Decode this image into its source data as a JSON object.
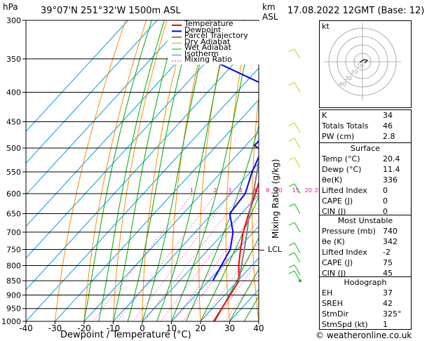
{
  "header": {
    "pressure_unit": "hPa",
    "location": "39°07'N  251°32'W  1500m  ASL",
    "km_label": "km",
    "asl_label": "ASL",
    "datetime": "17.08.2022  12GMT  (Base: 12)"
  },
  "chart_data": {
    "type": "line",
    "xlabel": "Dewpoint / Temperature (°C)",
    "ylabel": "",
    "mixing_ratio_axis_label": "Mixing Ratio (g/kg)",
    "x_ticks": [
      "-40",
      "-30",
      "-20",
      "-10",
      "0",
      "10",
      "20",
      "30",
      "40"
    ],
    "xlim": [
      -40,
      40
    ],
    "pressure_ticks": [
      "300",
      "350",
      "400",
      "450",
      "500",
      "550",
      "600",
      "650",
      "700",
      "750",
      "800",
      "850",
      "900",
      "950",
      "1000"
    ],
    "ylim": [
      1000,
      300
    ],
    "lcl_label": "LCL",
    "lcl_pressure": 752,
    "mixing_ratio_labels": [
      "1",
      "2",
      "3",
      "4",
      "6",
      "8",
      "10",
      "15",
      "20",
      "25"
    ],
    "legend": [
      "Temperature",
      "Dewpoint",
      "Parcel Trajectory",
      "Dry Adiabat",
      "Wet Adiabat",
      "Isotherm",
      "Mixing Ratio"
    ],
    "colors": {
      "temperature": "#ff0000",
      "dewpoint": "#0000ff",
      "parcel": "#808080",
      "dry_adiabat": "#ff8c00",
      "wet_adiabat": "#00aa00",
      "isotherm": "#00a0e0",
      "mixing_ratio": "#ff00aa"
    },
    "series": [
      {
        "name": "Temperature",
        "points": [
          [
            1000,
            24.5
          ],
          [
            850,
            20.4
          ],
          [
            800,
            15.5
          ],
          [
            750,
            11.0
          ],
          [
            700,
            6.5
          ],
          [
            650,
            2.5
          ],
          [
            600,
            -1.5
          ],
          [
            550,
            -6.0
          ],
          [
            510,
            -9.8
          ],
          [
            500,
            -7.8
          ],
          [
            480,
            -9.5
          ],
          [
            450,
            -13.0
          ],
          [
            400,
            -20.0
          ],
          [
            350,
            -27.5
          ],
          [
            300,
            -35.0
          ]
        ]
      },
      {
        "name": "Dewpoint",
        "points": [
          [
            850,
            11.4
          ],
          [
            800,
            9.5
          ],
          [
            750,
            7.5
          ],
          [
            700,
            3.0
          ],
          [
            650,
            -4.0
          ],
          [
            600,
            -5.0
          ],
          [
            550,
            -9.5
          ],
          [
            505,
            -13.0
          ],
          [
            495,
            -17.0
          ],
          [
            450,
            -17.0
          ],
          [
            400,
            -25.0
          ],
          [
            350,
            -60.0
          ],
          [
            300,
            -72.0
          ]
        ]
      },
      {
        "name": "Parcel Trajectory",
        "points": [
          [
            850,
            20.4
          ],
          [
            752,
            12.5
          ],
          [
            700,
            7.8
          ],
          [
            650,
            2.8
          ],
          [
            600,
            -2.2
          ],
          [
            550,
            -7.8
          ],
          [
            500,
            -14.0
          ],
          [
            450,
            -20.5
          ],
          [
            400,
            -28.0
          ],
          [
            350,
            -36.5
          ],
          [
            300,
            -46.0
          ]
        ]
      }
    ]
  },
  "hodograph": {
    "label": "kt",
    "rings": [
      "10",
      "20",
      "30",
      "40"
    ]
  },
  "indices": [
    {
      "k": "K",
      "v": "34"
    },
    {
      "k": "Totals Totals",
      "v": "46"
    },
    {
      "k": "PW (cm)",
      "v": "2.8"
    }
  ],
  "surface": {
    "title": "Surface",
    "rows": [
      {
        "k": "Temp (°C)",
        "v": "20.4"
      },
      {
        "k": "Dewp (°C)",
        "v": "11.4"
      },
      {
        "k": "θe(K)",
        "v": "336"
      },
      {
        "k": "Lifted Index",
        "v": "0"
      },
      {
        "k": "CAPE (J)",
        "v": "0"
      },
      {
        "k": "CIN (J)",
        "v": "0"
      }
    ]
  },
  "most_unstable": {
    "title": "Most Unstable",
    "rows": [
      {
        "k": "Pressure (mb)",
        "v": "740"
      },
      {
        "k": "θe (K)",
        "v": "342"
      },
      {
        "k": "Lifted Index",
        "v": "-2"
      },
      {
        "k": "CAPE (J)",
        "v": "75"
      },
      {
        "k": "CIN (J)",
        "v": "45"
      }
    ]
  },
  "hodograph_table": {
    "title": "Hodograph",
    "rows": [
      {
        "k": "EH",
        "v": "37"
      },
      {
        "k": "SREH",
        "v": "42"
      },
      {
        "k": "StmDir",
        "v": "325°"
      },
      {
        "k": "StmSpd (kt)",
        "v": "1"
      }
    ]
  },
  "footer": {
    "credit": "© weatheronline.co.uk"
  }
}
